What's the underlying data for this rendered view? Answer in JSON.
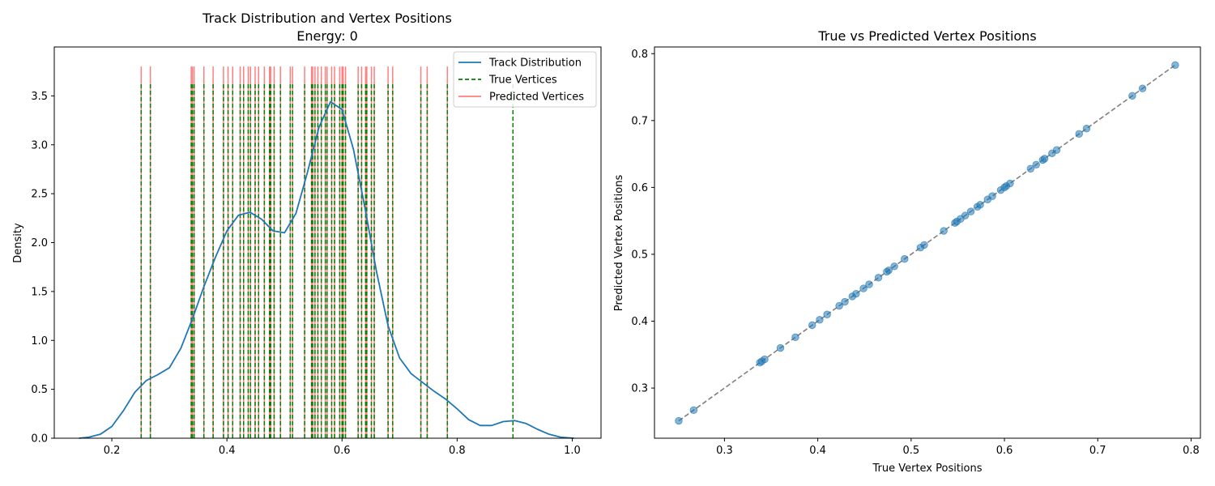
{
  "chart_data": [
    {
      "type": "line",
      "title": "Track Distribution and Vertex Positions",
      "subtitle": "Energy: 0",
      "xlabel": "",
      "ylabel": "Density",
      "xlim": [
        0.1,
        1.05
      ],
      "ylim": [
        0.0,
        4.0
      ],
      "xticks": [
        0.2,
        0.4,
        0.6,
        0.8,
        1.0
      ],
      "xtick_labels": [
        "0.2",
        "0.4",
        "0.6",
        "0.8",
        "1.0"
      ],
      "yticks": [
        0.0,
        0.5,
        1.0,
        1.5,
        2.0,
        2.5,
        3.0,
        3.5
      ],
      "ytick_labels": [
        "0.0",
        "0.5",
        "1.0",
        "1.5",
        "2.0",
        "2.5",
        "3.0",
        "3.5"
      ],
      "legend_position": "top-right",
      "series": [
        {
          "name": "Track Distribution",
          "style": "line",
          "color": "#1f77b4",
          "x": [
            0.143,
            0.16,
            0.18,
            0.2,
            0.22,
            0.24,
            0.26,
            0.28,
            0.3,
            0.32,
            0.34,
            0.36,
            0.38,
            0.4,
            0.42,
            0.44,
            0.46,
            0.48,
            0.5,
            0.52,
            0.54,
            0.56,
            0.58,
            0.6,
            0.62,
            0.64,
            0.66,
            0.68,
            0.7,
            0.72,
            0.74,
            0.76,
            0.78,
            0.8,
            0.82,
            0.84,
            0.86,
            0.88,
            0.9,
            0.92,
            0.94,
            0.96,
            0.98,
            1.003
          ],
          "y": [
            0.0,
            0.01,
            0.04,
            0.12,
            0.28,
            0.47,
            0.59,
            0.65,
            0.72,
            0.92,
            1.22,
            1.55,
            1.85,
            2.12,
            2.28,
            2.31,
            2.24,
            2.12,
            2.1,
            2.3,
            2.72,
            3.18,
            3.44,
            3.36,
            2.95,
            2.35,
            1.7,
            1.15,
            0.82,
            0.66,
            0.57,
            0.48,
            0.4,
            0.3,
            0.19,
            0.13,
            0.13,
            0.17,
            0.18,
            0.15,
            0.09,
            0.04,
            0.01,
            0.0
          ]
        },
        {
          "name": "True Vertices",
          "style": "vline-dashed",
          "color": "#008000",
          "height": 3.62,
          "values": [
            0.251,
            0.267,
            0.338,
            0.34,
            0.343,
            0.36,
            0.376,
            0.394,
            0.402,
            0.41,
            0.423,
            0.429,
            0.437,
            0.441,
            0.449,
            0.455,
            0.465,
            0.474,
            0.476,
            0.482,
            0.493,
            0.51,
            0.514,
            0.535,
            0.547,
            0.549,
            0.553,
            0.558,
            0.564,
            0.571,
            0.574,
            0.582,
            0.587,
            0.596,
            0.6,
            0.602,
            0.606,
            0.628,
            0.634,
            0.641,
            0.643,
            0.651,
            0.656,
            0.68,
            0.688,
            0.737,
            0.748,
            0.783,
            0.897
          ]
        },
        {
          "name": "Predicted Vertices",
          "style": "vline-solid",
          "color": "#ff7f7f",
          "height": 3.8,
          "values": [
            0.251,
            0.267,
            0.338,
            0.34,
            0.343,
            0.36,
            0.376,
            0.394,
            0.402,
            0.41,
            0.423,
            0.429,
            0.437,
            0.441,
            0.449,
            0.455,
            0.465,
            0.474,
            0.476,
            0.482,
            0.493,
            0.51,
            0.514,
            0.535,
            0.547,
            0.549,
            0.553,
            0.558,
            0.564,
            0.571,
            0.574,
            0.582,
            0.587,
            0.596,
            0.6,
            0.602,
            0.606,
            0.628,
            0.634,
            0.641,
            0.643,
            0.651,
            0.656,
            0.68,
            0.688,
            0.737,
            0.748,
            0.783
          ]
        }
      ]
    },
    {
      "type": "scatter",
      "title": "True vs Predicted Vertex Positions",
      "xlabel": "True Vertex Positions",
      "ylabel": "Predicted Vertex Positions",
      "xlim": [
        0.225,
        0.81
      ],
      "ylim": [
        0.225,
        0.81
      ],
      "xticks": [
        0.3,
        0.4,
        0.5,
        0.6,
        0.7,
        0.8
      ],
      "xtick_labels": [
        "0.3",
        "0.4",
        "0.5",
        "0.6",
        "0.7",
        "0.8"
      ],
      "yticks": [
        0.3,
        0.4,
        0.5,
        0.6,
        0.7,
        0.8
      ],
      "ytick_labels": [
        "0.3",
        "0.4",
        "0.5",
        "0.6",
        "0.7",
        "0.8"
      ],
      "marker_color": "#1f77b4",
      "reference_line": {
        "x": [
          0.251,
          0.783
        ],
        "y": [
          0.251,
          0.783
        ],
        "color": "#808080",
        "style": "dashed"
      },
      "x": [
        0.251,
        0.267,
        0.338,
        0.34,
        0.343,
        0.36,
        0.376,
        0.394,
        0.402,
        0.41,
        0.423,
        0.429,
        0.437,
        0.441,
        0.449,
        0.455,
        0.465,
        0.474,
        0.476,
        0.482,
        0.493,
        0.51,
        0.514,
        0.535,
        0.547,
        0.549,
        0.553,
        0.558,
        0.564,
        0.571,
        0.574,
        0.582,
        0.587,
        0.596,
        0.6,
        0.602,
        0.606,
        0.628,
        0.634,
        0.641,
        0.643,
        0.651,
        0.656,
        0.68,
        0.688,
        0.737,
        0.748,
        0.783
      ],
      "y": [
        0.251,
        0.267,
        0.338,
        0.34,
        0.343,
        0.36,
        0.376,
        0.394,
        0.402,
        0.41,
        0.423,
        0.429,
        0.437,
        0.441,
        0.449,
        0.455,
        0.465,
        0.474,
        0.476,
        0.482,
        0.493,
        0.51,
        0.514,
        0.535,
        0.547,
        0.549,
        0.553,
        0.558,
        0.564,
        0.571,
        0.574,
        0.582,
        0.587,
        0.596,
        0.6,
        0.602,
        0.606,
        0.628,
        0.634,
        0.641,
        0.643,
        0.651,
        0.656,
        0.68,
        0.688,
        0.737,
        0.748,
        0.783
      ]
    }
  ]
}
